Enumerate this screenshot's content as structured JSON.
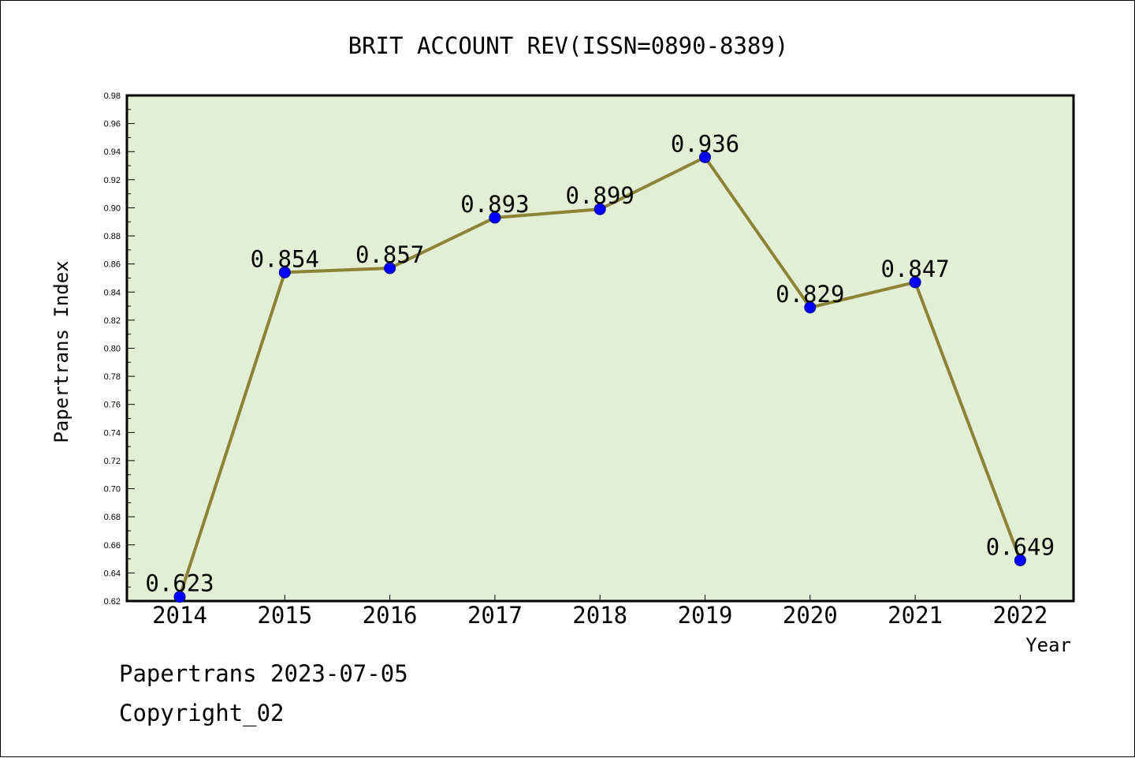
{
  "chart_data": {
    "type": "line",
    "title": "BRIT ACCOUNT REV(ISSN=0890-8389)",
    "xlabel": "Year",
    "ylabel": "Papertrans Index",
    "x": [
      "2014",
      "2015",
      "2016",
      "2017",
      "2018",
      "2019",
      "2020",
      "2021",
      "2022"
    ],
    "values": [
      0.623,
      0.854,
      0.857,
      0.893,
      0.899,
      0.936,
      0.829,
      0.847,
      0.649
    ],
    "data_labels": [
      "0.623",
      "0.854",
      "0.857",
      "0.893",
      "0.899",
      "0.936",
      "0.829",
      "0.847",
      "0.649"
    ],
    "ylim": [
      0.62,
      0.98
    ],
    "y_ticks": [
      "0.62",
      "0.64",
      "0.66",
      "0.68",
      "0.70",
      "0.72",
      "0.74",
      "0.76",
      "0.78",
      "0.80",
      "0.82",
      "0.84",
      "0.86",
      "0.88",
      "0.90",
      "0.92",
      "0.94",
      "0.96",
      "0.98"
    ],
    "grid": false,
    "colors": {
      "line": "#8b8336",
      "marker": "#0000ff",
      "plot_bg": "#e2efd5",
      "axis": "#000000"
    }
  },
  "footer": {
    "date_line": "Papertrans 2023-07-05",
    "copyright_line": "Copyright_02"
  }
}
